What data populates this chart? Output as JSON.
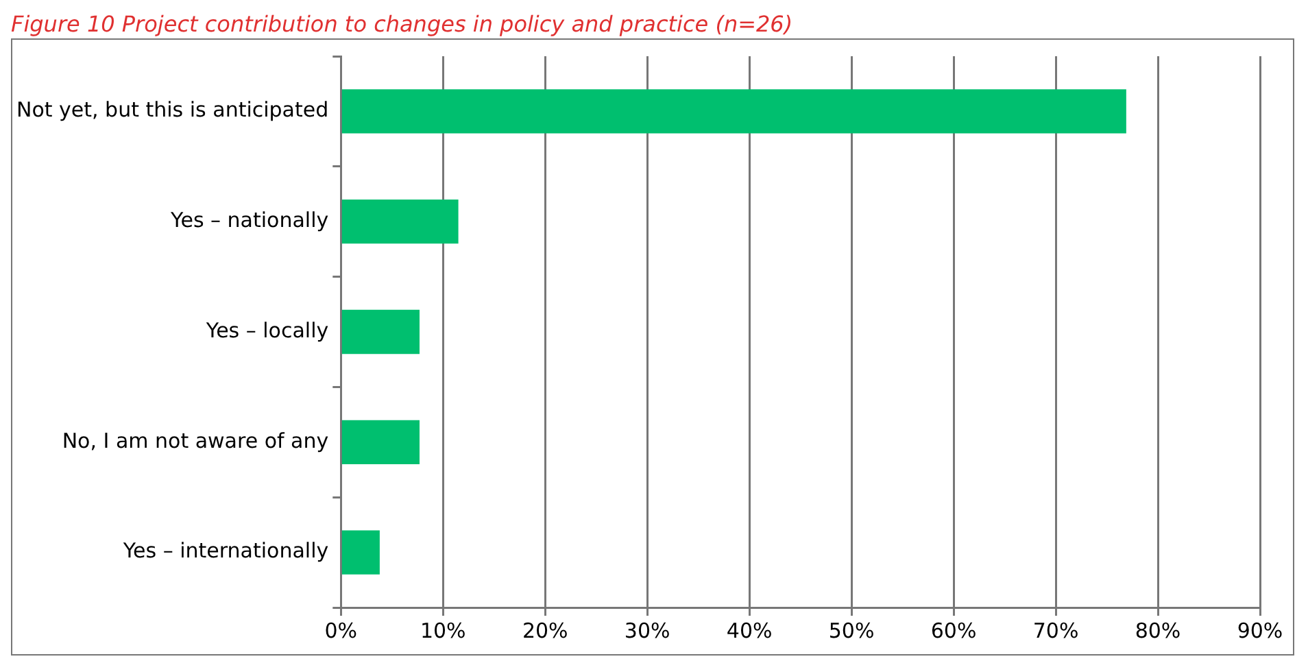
{
  "chart_data": {
    "type": "bar",
    "orientation": "horizontal",
    "title": "Figure 10 Project contribution to changes in policy and practice (n=26)",
    "categories": [
      "Not yet, but this is anticipated",
      "Yes – nationally",
      "Yes – locally",
      "No, I am not aware of any",
      "Yes – internationally"
    ],
    "values": [
      76.9,
      11.5,
      7.7,
      7.7,
      3.8
    ],
    "color": "#00bf6f",
    "xlim": [
      0,
      90
    ],
    "xticks": [
      {
        "value": 0,
        "label": "0%"
      },
      {
        "value": 10,
        "label": "10%"
      },
      {
        "value": 20,
        "label": "20%"
      },
      {
        "value": 30,
        "label": "30%"
      },
      {
        "value": 40,
        "label": "40%"
      },
      {
        "value": 50,
        "label": "50%"
      },
      {
        "value": 60,
        "label": "60%"
      },
      {
        "value": 70,
        "label": "70%"
      },
      {
        "value": 80,
        "label": "80%"
      },
      {
        "value": 90,
        "label": "90%"
      }
    ],
    "grid": "x",
    "legend": false
  }
}
